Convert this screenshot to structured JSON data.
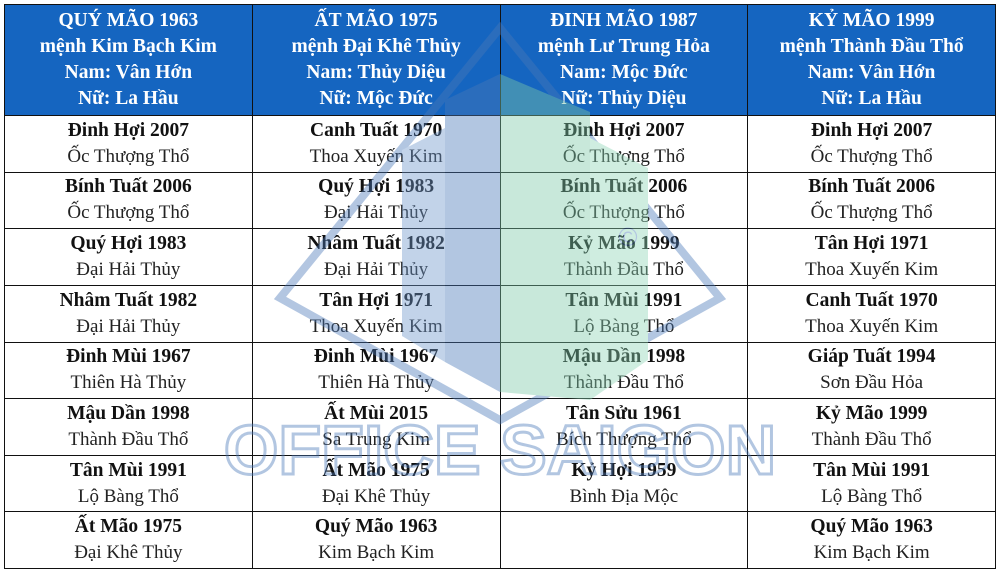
{
  "columns": [
    {
      "header": [
        "QUÝ MÃO 1963",
        "mệnh Kim Bạch Kim",
        "Nam: Vân Hớn",
        "Nữ: La Hầu"
      ],
      "rows": [
        {
          "year": "Đinh Hợi 2007",
          "element": "Ốc Thượng Thổ"
        },
        {
          "year": "Bính Tuất 2006",
          "element": "Ốc Thượng Thổ"
        },
        {
          "year": "Quý Hợi 1983",
          "element": "Đại Hải Thủy"
        },
        {
          "year": "Nhâm Tuất 1982",
          "element": "Đại Hải Thủy"
        },
        {
          "year": "Đinh Mùi 1967",
          "element": "Thiên Hà Thủy"
        },
        {
          "year": "Mậu Dần 1998",
          "element": "Thành Đầu Thổ"
        },
        {
          "year": "Tân Mùi 1991",
          "element": "Lộ Bàng Thổ"
        },
        {
          "year": "Ất Mão 1975",
          "element": "Đại Khê Thủy"
        }
      ]
    },
    {
      "header": [
        "ẤT MÃO 1975",
        "mệnh Đại Khê Thủy",
        "Nam: Thủy Diệu",
        "Nữ: Mộc Đức"
      ],
      "rows": [
        {
          "year": "Canh Tuất 1970",
          "element": "Thoa Xuyến Kim"
        },
        {
          "year": "Quý Hợi 1983",
          "element": "Đại Hải Thủy"
        },
        {
          "year": "Nhâm Tuất 1982",
          "element": "Đại Hải Thủy"
        },
        {
          "year": "Tân Hợi 1971",
          "element": "Thoa Xuyến Kim"
        },
        {
          "year": "Đinh Mùi 1967",
          "element": "Thiên Hà Thủy"
        },
        {
          "year": "Ất Mùi 2015",
          "element": "Sa Trung Kim"
        },
        {
          "year": "Ất Mão 1975",
          "element": "Đại Khê Thủy"
        },
        {
          "year": "Quý Mão 1963",
          "element": "Kim Bạch Kim"
        }
      ]
    },
    {
      "header": [
        "ĐINH MÃO 1987",
        "mệnh Lư Trung Hỏa",
        "Nam: Mộc Đức",
        "Nữ: Thủy Diệu"
      ],
      "rows": [
        {
          "year": "Đinh Hợi 2007",
          "element": "Ốc Thượng Thổ"
        },
        {
          "year": "Bính Tuất 2006",
          "element": "Ốc Thượng Thổ"
        },
        {
          "year": "Kỷ Mão 1999",
          "element": "Thành Đầu Thổ"
        },
        {
          "year": "Tân Mùi 1991",
          "element": "Lộ Bàng Thổ"
        },
        {
          "year": "Mậu Dần 1998",
          "element": "Thành Đầu Thổ"
        },
        {
          "year": "Tân Sửu 1961",
          "element": "Bích Thượng Thổ"
        },
        {
          "year": "Kỷ Hợi 1959",
          "element": "Bình Địa Mộc"
        },
        {
          "year": "",
          "element": ""
        }
      ]
    },
    {
      "header": [
        "KỶ MÃO 1999",
        "mệnh Thành Đầu Thổ",
        "Nam: Vân Hớn",
        "Nữ: La Hầu"
      ],
      "rows": [
        {
          "year": "Đinh Hợi 2007",
          "element": "Ốc Thượng Thổ"
        },
        {
          "year": "Bính Tuất 2006",
          "element": "Ốc Thượng Thổ"
        },
        {
          "year": "Tân Hợi 1971",
          "element": "Thoa Xuyến Kim"
        },
        {
          "year": "Canh Tuất 1970",
          "element": "Thoa Xuyến Kim"
        },
        {
          "year": "Giáp Tuất 1994",
          "element": "Sơn Đầu Hỏa"
        },
        {
          "year": "Kỷ Mão 1999",
          "element": "Thành Đầu Thổ"
        },
        {
          "year": "Tân Mùi 1991",
          "element": "Lộ Bàng Thổ"
        },
        {
          "year": "Quý Mão 1963",
          "element": "Kim Bạch Kim"
        }
      ]
    }
  ],
  "watermark": {
    "text": "OFFICE SAIGON",
    "symbol": "©"
  },
  "colors": {
    "header_bg": "#1565c0",
    "header_text": "#ffffff",
    "border": "#111111",
    "watermark_blue": "#4a78b8",
    "watermark_green": "#7ec9a8"
  }
}
